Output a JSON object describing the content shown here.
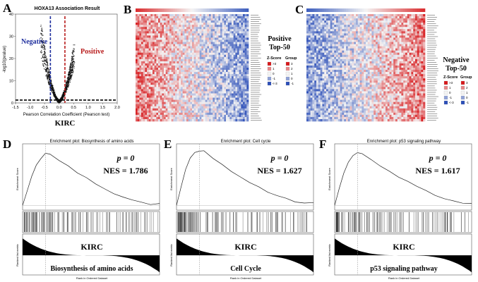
{
  "panels": {
    "A": "A",
    "B": "B",
    "C": "C",
    "D": "D",
    "E": "E",
    "F": "F"
  },
  "colors": {
    "negative": "#1f2f9e",
    "positive": "#b81c1c",
    "heat_red": "#d7191c",
    "heat_blue": "#2c4fb8",
    "heat_white": "#f4f4f4"
  },
  "volcano": {
    "title": "HOXA13 Association Result",
    "ylabel": "-log10(pvalue)",
    "xlabel": "Pearson Correlation Coefficient (Pearson test)",
    "negative_label": "Negative",
    "positive_label": "Positive",
    "cancer": "KIRC",
    "chart_data": {
      "type": "scatter",
      "title": "HOXA13 Association Result",
      "xlabel": "Pearson Correlation Coefficient (Pearson test)",
      "ylabel": "-log10(pvalue)",
      "xlim": [
        -1.5,
        2.0
      ],
      "ylim": [
        0,
        40
      ],
      "xticks": [
        "-1.5",
        "-1.0",
        "-0.5",
        "0.0",
        "0.5",
        "1.0",
        "1.5",
        "2.0"
      ],
      "yticks": [
        "0",
        "10",
        "20",
        "30",
        "40"
      ],
      "thresholds": {
        "x_neg": -0.3,
        "x_pos": 0.2,
        "y": 1.3
      },
      "annotations": [
        "Negative",
        "Positive"
      ]
    }
  },
  "heatmaps": {
    "B": {
      "label_line1": "Positive",
      "label_line2": "Top-50",
      "legend_zscore": "Z-Score",
      "legend_group": "Group",
      "z_items": [
        ">3",
        "1",
        "0",
        "-1",
        "<-3"
      ],
      "group_items": [
        "3",
        "2",
        "1",
        "0",
        "-1"
      ]
    },
    "C": {
      "label_line1": "Negative",
      "label_line2": "Top-50",
      "legend_zscore": "Z-Score",
      "legend_group": "Group",
      "z_items": [
        ">3",
        "1",
        "0",
        "-1",
        "<-3"
      ],
      "group_items": [
        "3",
        "2",
        "1",
        "0",
        "-1"
      ]
    }
  },
  "gsea": [
    {
      "title": "Enrichment plot: Biosynthesis of amino acids",
      "p": "p = 0",
      "nes": "NES = 1.786",
      "cancer": "KIRC",
      "pathway": "Biosynthesis of amino acids",
      "ylabel_top": "Enrichment Score",
      "ylabel_bottom": "Ranked list metric",
      "xlabel": "Rank in Ordered Dataset",
      "chart_data": {
        "type": "line",
        "title": "Enrichment plot: Biosynthesis of amino acids",
        "x": [
          0,
          500,
          1000,
          1500,
          2000,
          2500,
          3000,
          4000,
          5000,
          6000,
          7000,
          8000,
          9000,
          10000,
          11000,
          12000,
          13000,
          14000,
          15000
        ],
        "y": [
          0.0,
          0.15,
          0.3,
          0.42,
          0.5,
          0.55,
          0.54,
          0.48,
          0.41,
          0.35,
          0.29,
          0.23,
          0.18,
          0.13,
          0.09,
          0.06,
          0.03,
          0.01,
          0.02
        ],
        "xlim": [
          0,
          15000
        ]
      }
    },
    {
      "title": "Enrichment plot: Cell cycle",
      "p": "p = 0",
      "nes": "NES = 1.627",
      "cancer": "KIRC",
      "pathway": "Cell Cycle",
      "ylabel_top": "Enrichment Score",
      "ylabel_bottom": "Ranked list metric",
      "xlabel": "Rank in Ordered Dataset",
      "chart_data": {
        "type": "line",
        "title": "Enrichment plot: Cell cycle",
        "x": [
          0,
          500,
          1000,
          1500,
          2000,
          2500,
          3000,
          4000,
          5000,
          6000,
          7000,
          8000,
          9000,
          10000,
          11000,
          12000,
          13000,
          14000,
          15000
        ],
        "y": [
          0.0,
          0.2,
          0.38,
          0.5,
          0.56,
          0.58,
          0.57,
          0.5,
          0.43,
          0.36,
          0.3,
          0.24,
          0.19,
          0.14,
          0.1,
          0.07,
          0.04,
          0.02,
          0.03
        ],
        "xlim": [
          0,
          15000
        ]
      }
    },
    {
      "title": "Enrichment plot: p53 signaling pathway",
      "p": "p = 0",
      "nes": "NES = 1.617",
      "cancer": "KIRC",
      "pathway": "p53 signaling pathway",
      "ylabel_top": "Enrichment Score",
      "ylabel_bottom": "Ranked list metric",
      "xlabel": "Rank in Ordered Dataset",
      "chart_data": {
        "type": "line",
        "title": "Enrichment plot: p53 signaling pathway",
        "x": [
          0,
          500,
          1000,
          1500,
          2000,
          2500,
          3000,
          4000,
          5000,
          6000,
          7000,
          8000,
          9000,
          10000,
          11000,
          12000,
          13000,
          14000,
          15000
        ],
        "y": [
          0.0,
          0.18,
          0.34,
          0.46,
          0.53,
          0.55,
          0.54,
          0.48,
          0.42,
          0.36,
          0.3,
          0.25,
          0.2,
          0.15,
          0.11,
          0.07,
          0.04,
          0.02,
          0.02
        ],
        "xlim": [
          0,
          15000
        ]
      }
    }
  ]
}
